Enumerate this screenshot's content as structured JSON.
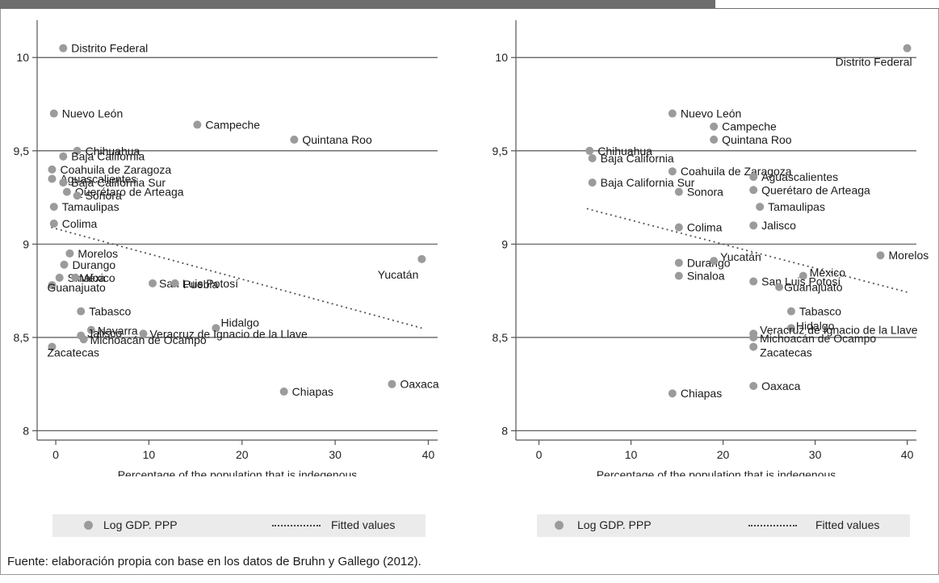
{
  "source_note": "Fuente: elaboración propia con base en los datos de Bruhn y Gallego (2012).",
  "legend": {
    "points_label": "Log GDP. PPP",
    "fit_label": "Fitted values"
  },
  "colors": {
    "point": "#9b9b9b",
    "fit": "#555555",
    "grid": "#555555",
    "bar": "#6e6e6e",
    "legend_bg": "#ebebeb"
  },
  "chart_data": [
    {
      "type": "scatter",
      "title": "",
      "xlabel": "Percentage of the population that is indegenous",
      "ylabel": "",
      "xlim": [
        -2,
        41
      ],
      "ylim": [
        7.95,
        10.2
      ],
      "xticks": [
        0,
        10,
        20,
        30,
        40
      ],
      "xtick_labels": [
        "0",
        "10",
        "20",
        "30",
        "40"
      ],
      "yticks": [
        8,
        8.5,
        9,
        9.5,
        10
      ],
      "ytick_labels": [
        "8",
        "8,5",
        "9",
        "9,5",
        "10"
      ],
      "grid": "horizontal",
      "fit_line": {
        "x": [
          -0.5,
          39.3
        ],
        "y": [
          9.09,
          8.55
        ]
      },
      "series": [
        {
          "name": "Log GDP. PPP",
          "points": [
            {
              "label": "Distrito Federal",
              "x": 0.8,
              "y": 10.05
            },
            {
              "label": "Nuevo León",
              "x": -0.2,
              "y": 9.7
            },
            {
              "label": "Campeche",
              "x": 15.2,
              "y": 9.64
            },
            {
              "label": "Quintana Roo",
              "x": 25.6,
              "y": 9.56
            },
            {
              "label": "Chihuahua",
              "x": 2.3,
              "y": 9.5
            },
            {
              "label": "Baja California",
              "x": 0.8,
              "y": 9.47
            },
            {
              "label": "Coahuila de Zaragoza",
              "x": -0.4,
              "y": 9.4
            },
            {
              "label": "Aguascalientes",
              "x": -0.4,
              "y": 9.35
            },
            {
              "label": "Baja California Sur",
              "x": 0.8,
              "y": 9.33
            },
            {
              "label": "Querétaro de Arteaga",
              "x": 1.2,
              "y": 9.28
            },
            {
              "label": "Sonora",
              "x": 2.3,
              "y": 9.26
            },
            {
              "label": "Tamaulipas",
              "x": -0.2,
              "y": 9.2
            },
            {
              "label": "Colima",
              "x": -0.2,
              "y": 9.11
            },
            {
              "label": "Yucatán",
              "x": 39.3,
              "y": 8.92
            },
            {
              "label": "Morelos",
              "x": 1.5,
              "y": 8.95
            },
            {
              "label": "Durango",
              "x": 0.9,
              "y": 8.89
            },
            {
              "label": "Sinaloa",
              "x": 0.4,
              "y": 8.82
            },
            {
              "label": "México",
              "x": 2.1,
              "y": 8.82
            },
            {
              "label": "Guanajuato",
              "x": -0.4,
              "y": 8.78
            },
            {
              "label": "San Luis Potosí",
              "x": 10.4,
              "y": 8.79
            },
            {
              "label": "Puebla",
              "x": 12.8,
              "y": 8.79
            },
            {
              "label": "Tabasco",
              "x": 2.7,
              "y": 8.64
            },
            {
              "label": "Hidalgo",
              "x": 17.2,
              "y": 8.55
            },
            {
              "label": "Navarra",
              "x": 3.8,
              "y": 8.54
            },
            {
              "label": "Veracruz de Ignacio de la Llave",
              "x": 9.4,
              "y": 8.52
            },
            {
              "label": "Jalisco",
              "x": 2.7,
              "y": 8.51
            },
            {
              "label": "Michoacán de Ocampo",
              "x": 3.0,
              "y": 8.49
            },
            {
              "label": "Zacatecas",
              "x": -0.4,
              "y": 8.45
            },
            {
              "label": "Chiapas",
              "x": 24.5,
              "y": 8.21
            },
            {
              "label": "Oaxaca",
              "x": 36.1,
              "y": 8.25
            }
          ]
        }
      ]
    },
    {
      "type": "scatter",
      "title": "",
      "xlabel": "Percentage of the population that is indegenous",
      "ylabel": "",
      "xlim": [
        -2.5,
        41
      ],
      "ylim": [
        7.95,
        10.2
      ],
      "xticks": [
        0,
        10,
        20,
        30,
        40
      ],
      "xtick_labels": [
        "0",
        "10",
        "20",
        "30",
        "40"
      ],
      "yticks": [
        8,
        8.5,
        9,
        9.5,
        10
      ],
      "ytick_labels": [
        "8",
        "8,5",
        "9",
        "9,5",
        "10"
      ],
      "grid": "horizontal",
      "fit_line": {
        "x": [
          5.2,
          40.2
        ],
        "y": [
          9.19,
          8.74
        ]
      },
      "series": [
        {
          "name": "Log GDP. PPP",
          "points": [
            {
              "label": "Distrito Federal",
              "x": 40.0,
              "y": 10.05
            },
            {
              "label": "Nuevo León",
              "x": 14.5,
              "y": 9.7
            },
            {
              "label": "Campeche",
              "x": 19.0,
              "y": 9.63
            },
            {
              "label": "Quintana Roo",
              "x": 19.0,
              "y": 9.56
            },
            {
              "label": "Chihuahua",
              "x": 5.5,
              "y": 9.5
            },
            {
              "label": "Baja California",
              "x": 5.8,
              "y": 9.46
            },
            {
              "label": "Coahuila de Zaragoza",
              "x": 14.5,
              "y": 9.39
            },
            {
              "label": "Aguascalientes",
              "x": 23.3,
              "y": 9.36
            },
            {
              "label": "Baja California Sur",
              "x": 5.8,
              "y": 9.33
            },
            {
              "label": "Querétaro de Arteaga",
              "x": 23.3,
              "y": 9.29
            },
            {
              "label": "Sonora",
              "x": 15.2,
              "y": 9.28
            },
            {
              "label": "Tamaulipas",
              "x": 24.0,
              "y": 9.2
            },
            {
              "label": "Colima",
              "x": 15.2,
              "y": 9.09
            },
            {
              "label": "Jalisco",
              "x": 23.3,
              "y": 9.1
            },
            {
              "label": "Morelos",
              "x": 37.1,
              "y": 8.94
            },
            {
              "label": "Durango",
              "x": 15.2,
              "y": 8.9
            },
            {
              "label": "Yucatán",
              "x": 19.0,
              "y": 8.91
            },
            {
              "label": "Sinaloa",
              "x": 15.2,
              "y": 8.83
            },
            {
              "label": "México",
              "x": 28.7,
              "y": 8.83
            },
            {
              "label": "San Luis Potosí",
              "x": 23.3,
              "y": 8.8
            },
            {
              "label": "Guanajuato",
              "x": 26.1,
              "y": 8.77
            },
            {
              "label": "Tabasco",
              "x": 27.4,
              "y": 8.64
            },
            {
              "label": "Hidalgo",
              "x": 27.4,
              "y": 8.55
            },
            {
              "label": "Veracruz de Ignacio de la Llave",
              "x": 23.3,
              "y": 8.52
            },
            {
              "label": "Michoacán de Ocampo",
              "x": 23.3,
              "y": 8.5
            },
            {
              "label": "Zacatecas",
              "x": 23.3,
              "y": 8.45
            },
            {
              "label": "Oaxaca",
              "x": 23.3,
              "y": 8.24
            },
            {
              "label": "Chiapas",
              "x": 14.5,
              "y": 8.2
            }
          ]
        }
      ]
    }
  ]
}
